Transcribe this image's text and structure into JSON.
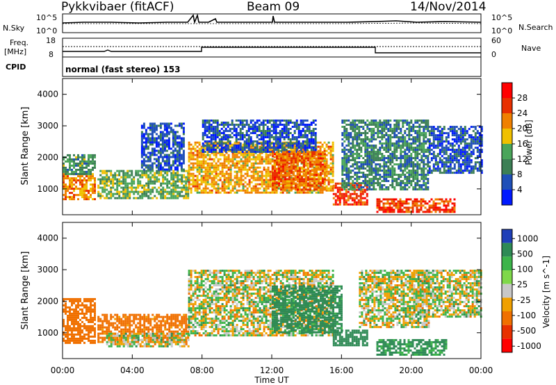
{
  "header": {
    "station": "Pykkvibaer (fitACF)",
    "beam": "Beam 09",
    "date": "14/Nov/2014"
  },
  "panels": {
    "nsky_label": "N.Sky",
    "nsky_ticks": [
      "10^5",
      "10^0"
    ],
    "nsearch_label": "N.Search",
    "nsearch_ticks": [
      "10^5",
      "10^0"
    ],
    "freq_label_1": "Freq.",
    "freq_label_2": "[MHz]",
    "freq_ticks": [
      "18",
      "8"
    ],
    "nave_label": "Nave",
    "nave_ticks": [
      "60",
      "0"
    ],
    "cpid_label": "CPID",
    "cpid_text": "normal (fast stereo) 153"
  },
  "colors": {
    "power_scale": [
      "#0019ff",
      "#1f4fb8",
      "#3c7f55",
      "#4aa55a",
      "#f0c000",
      "#f08000",
      "#e83000",
      "#ff0000"
    ],
    "velocity_scale": [
      "#1f3fb8",
      "#2e8a55",
      "#3cb44a",
      "#7fd84a",
      "#c8c8c8",
      "#f0a000",
      "#f07000",
      "#e83000",
      "#ff0000"
    ],
    "ground_scatter": "#bdbdbd"
  },
  "chart_data": [
    {
      "type": "heatmap",
      "title": "Power [dB]",
      "xlabel": "Time UT",
      "ylabel": "Slant Range [km]",
      "xlim": [
        "00:00",
        "24:00"
      ],
      "ylim": [
        180,
        4500
      ],
      "x_ticks": [
        "00:00",
        "04:00",
        "08:00",
        "12:00",
        "16:00",
        "20:00",
        "00:00"
      ],
      "y_ticks": [
        1000,
        2000,
        3000,
        4000
      ],
      "colorbar_label": "Power [dB]",
      "colorbar_range": [
        0,
        32
      ],
      "colorbar_ticks": [
        4,
        8,
        12,
        16,
        20,
        24,
        28
      ],
      "regions": [
        {
          "t_start": 0.0,
          "t_end": 1.8,
          "r_low": 700,
          "r_high": 1500,
          "value": 22
        },
        {
          "t_start": 0.0,
          "t_end": 1.8,
          "r_low": 1500,
          "r_high": 2100,
          "value": 12
        },
        {
          "t_start": 2.0,
          "t_end": 7.2,
          "r_low": 700,
          "r_high": 1600,
          "value": 14
        },
        {
          "t_start": 4.5,
          "t_end": 7.0,
          "r_low": 1600,
          "r_high": 3100,
          "value": 6
        },
        {
          "t_start": 7.2,
          "t_end": 15.5,
          "r_low": 900,
          "r_high": 2500,
          "value": 20
        },
        {
          "t_start": 8.0,
          "t_end": 14.5,
          "r_low": 2200,
          "r_high": 3200,
          "value": 6
        },
        {
          "t_start": 12.0,
          "t_end": 15.0,
          "r_low": 1000,
          "r_high": 2200,
          "value": 24
        },
        {
          "t_start": 15.5,
          "t_end": 17.5,
          "r_low": 500,
          "r_high": 1200,
          "value": 26
        },
        {
          "t_start": 16.0,
          "t_end": 21.0,
          "r_low": 1000,
          "r_high": 3200,
          "value": 10
        },
        {
          "t_start": 18.0,
          "t_end": 22.5,
          "r_low": 300,
          "r_high": 700,
          "value": 26
        },
        {
          "t_start": 21.0,
          "t_end": 24.0,
          "r_low": 1500,
          "r_high": 3000,
          "value": 6
        }
      ]
    },
    {
      "type": "heatmap",
      "title": "Velocity [m s^-1]",
      "xlabel": "Time UT",
      "ylabel": "Slant Range [km]",
      "xlim": [
        "00:00",
        "24:00"
      ],
      "ylim": [
        180,
        4500
      ],
      "x_ticks": [
        "00:00",
        "04:00",
        "08:00",
        "12:00",
        "16:00",
        "20:00",
        "00:00"
      ],
      "y_ticks": [
        1000,
        2000,
        3000,
        4000
      ],
      "colorbar_label": "Velocity [m s^-1]",
      "colorbar_ticks": [
        1000,
        500,
        100,
        25,
        -25,
        -100,
        -500,
        -1000
      ],
      "regions": [
        {
          "t_start": 0.0,
          "t_end": 1.8,
          "r_low": 700,
          "r_high": 2100,
          "value": -300
        },
        {
          "t_start": 2.0,
          "t_end": 7.2,
          "r_low": 700,
          "r_high": 1600,
          "value": -200
        },
        {
          "t_start": 2.5,
          "t_end": 7.2,
          "r_low": 600,
          "r_high": 1000,
          "value": 0
        },
        {
          "t_start": 7.2,
          "t_end": 15.5,
          "r_low": 900,
          "r_high": 3000,
          "value": 0
        },
        {
          "t_start": 12.0,
          "t_end": 16.0,
          "r_low": 1000,
          "r_high": 2500,
          "value": 200
        },
        {
          "t_start": 15.5,
          "t_end": 17.5,
          "r_low": 600,
          "r_high": 1100,
          "value": 300
        },
        {
          "t_start": 17.0,
          "t_end": 21.0,
          "r_low": 1200,
          "r_high": 3000,
          "value": 0
        },
        {
          "t_start": 18.0,
          "t_end": 22.0,
          "r_low": 300,
          "r_high": 800,
          "value": 150
        },
        {
          "t_start": 20.0,
          "t_end": 24.0,
          "r_low": 1500,
          "r_high": 3000,
          "value": 0
        }
      ]
    }
  ]
}
